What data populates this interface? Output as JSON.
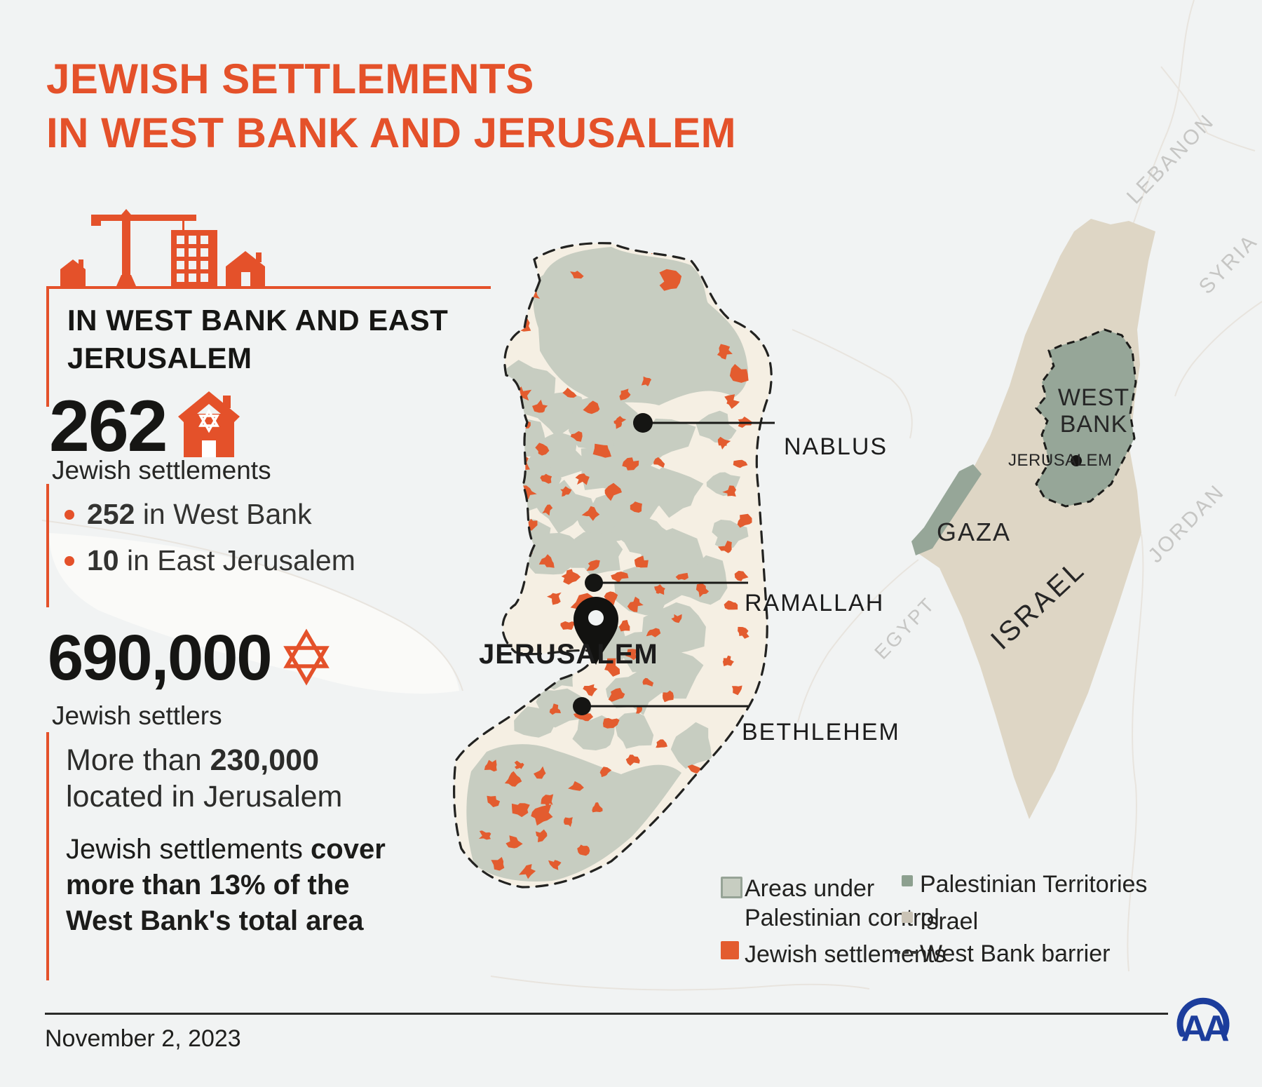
{
  "title": {
    "line1": "JEWISH SETTLEMENTS",
    "line2": "IN WEST BANK AND JERUSALEM"
  },
  "stats": {
    "heading_line1": "IN WEST BANK AND EAST",
    "heading_line2": "JERUSALEM",
    "settlements_count": "262",
    "settlements_label": "Jewish settlements",
    "bullets": [
      {
        "value": "252",
        "rest": " in West Bank"
      },
      {
        "value": "10",
        "rest": " in East Jerusalem"
      }
    ],
    "settlers_count": "690,000",
    "settlers_label": "Jewish settlers",
    "note_prefix": "More than ",
    "note_bold": "230,000",
    "note_suffix": " located in Jerusalem",
    "coverage_prefix": "Jewish settlements ",
    "coverage_bold": "cover more than 13% of the West Bank's total area"
  },
  "west_bank_map": {
    "cities": {
      "nablus": "NABLUS",
      "ramallah": "RAMALLAH",
      "bethlehem": "BETHLEHEM",
      "jerusalem": "JERUSALEM"
    }
  },
  "overview_map": {
    "west_bank_line1": "WEST",
    "west_bank_line2": "BANK",
    "jerusalem": "JERUSALEM",
    "gaza": "GAZA",
    "israel": "ISRAEL",
    "lebanon": "LEBANON",
    "syria": "SYRIA",
    "jordan": "JORDAN",
    "egypt": "EGYPT"
  },
  "legend": {
    "areas_line1": "Areas under",
    "areas_line2": "Palestinian control",
    "jewish_settlements": "Jewish settlements",
    "palestinian_territories": "Palestinian Territories",
    "israel": "Israel",
    "west_bank_barrier": "West Bank barrier"
  },
  "footer": {
    "date": "November 2, 2023",
    "logo": "AA"
  },
  "colors": {
    "accent": "#E4512A",
    "settlement": "#E35C2F",
    "palestinian_control": "#C7CDC1",
    "territories_dark": "#8DA08F",
    "israel_beige": "#DED6C5",
    "logo_blue": "#1C3D9C"
  }
}
